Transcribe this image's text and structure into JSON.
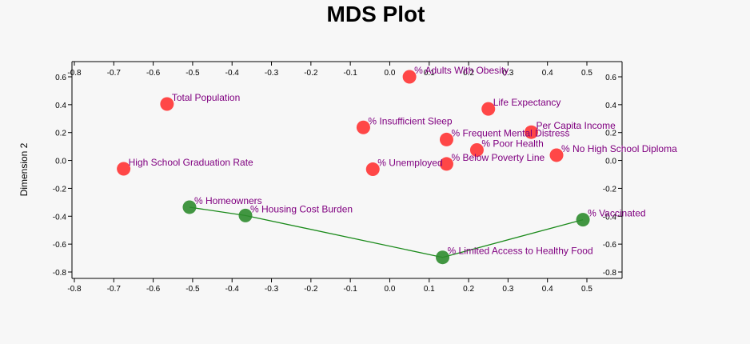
{
  "chart_data": {
    "type": "scatter",
    "title": "MDS Plot",
    "xlabel": "",
    "ylabel": "Dimension 2",
    "xlim": [
      -0.8,
      0.5
    ],
    "ylim": [
      -0.8,
      0.6
    ],
    "x_ticks": [
      -0.8,
      -0.7,
      -0.6,
      -0.5,
      -0.4,
      -0.3,
      -0.2,
      -0.1,
      0.0,
      0.1,
      0.2,
      0.3,
      0.4,
      0.5
    ],
    "y_ticks": [
      0.6,
      0.4,
      0.2,
      0.0,
      -0.2,
      -0.4,
      -0.6,
      -0.8
    ],
    "grid": false,
    "label_color": "#800080",
    "series": [
      {
        "color": "#ff3333",
        "points": [
          {
            "label": "Total Population",
            "x": -0.565,
            "y": 0.405
          },
          {
            "label": "High School Graduation Rate",
            "x": -0.675,
            "y": -0.06
          },
          {
            "label": "% Adults With Obesity",
            "x": 0.05,
            "y": 0.6
          },
          {
            "label": "% Insufficient Sleep",
            "x": -0.067,
            "y": 0.237
          },
          {
            "label": "% Unemployed",
            "x": -0.043,
            "y": -0.063
          },
          {
            "label": "% Frequent Mental Distress",
            "x": 0.144,
            "y": 0.15
          },
          {
            "label": "% Below Poverty Line",
            "x": 0.144,
            "y": -0.025
          },
          {
            "label": "% Poor Health",
            "x": 0.221,
            "y": 0.075
          },
          {
            "label": "Life Expectancy",
            "x": 0.25,
            "y": 0.37
          },
          {
            "label": "Per Capita Income",
            "x": 0.359,
            "y": 0.203
          },
          {
            "label": "% No High School Diploma",
            "x": 0.423,
            "y": 0.038
          }
        ]
      },
      {
        "color": "#2e8b2e",
        "line_color": "#1a8a1a",
        "points": [
          {
            "label": "% Homeowners",
            "x": -0.508,
            "y": -0.335
          },
          {
            "label": "% Housing Cost Burden",
            "x": -0.366,
            "y": -0.395
          },
          {
            "label": "% Limited Access to Healthy Food",
            "x": 0.134,
            "y": -0.695
          },
          {
            "label": "% Vaccinated",
            "x": 0.49,
            "y": -0.425
          }
        ]
      }
    ]
  }
}
